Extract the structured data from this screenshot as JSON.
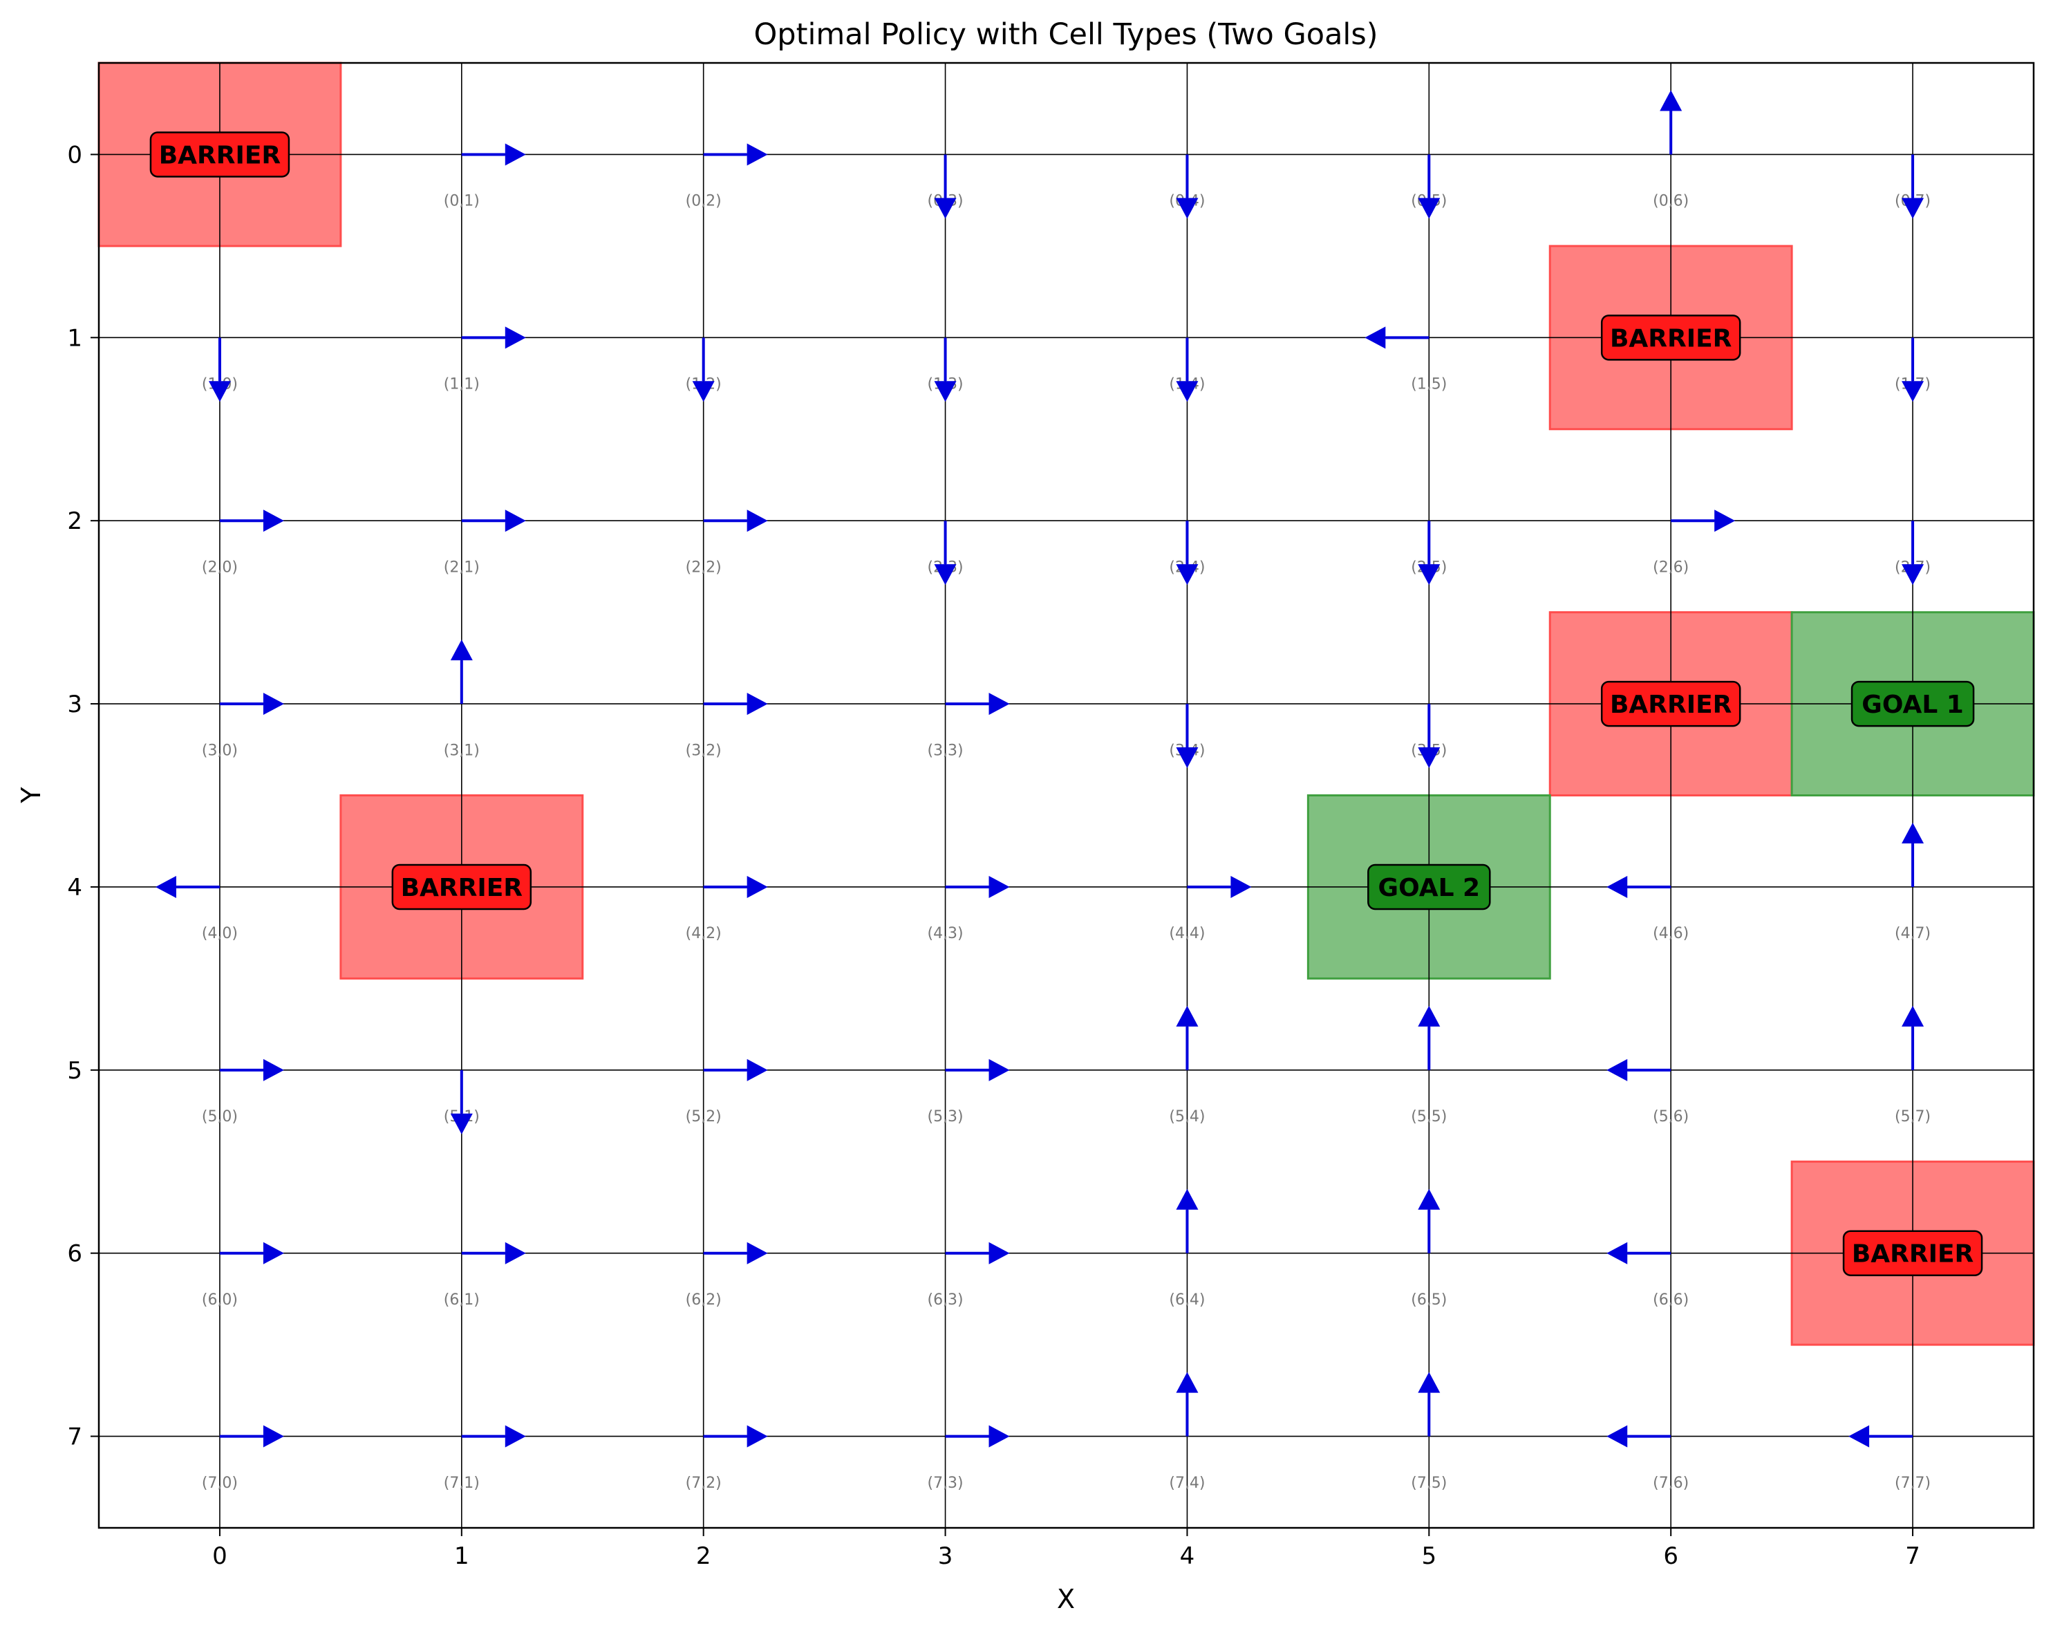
{
  "chart_data": {
    "type": "grid-policy",
    "title": "Optimal Policy with Cell Types (Two Goals)",
    "xlabel": "X",
    "ylabel": "Y",
    "xlim": [
      -0.5,
      7.5
    ],
    "ylim": [
      7.5,
      -0.5
    ],
    "x_ticks": [
      "0",
      "1",
      "2",
      "3",
      "4",
      "5",
      "6",
      "7"
    ],
    "y_ticks": [
      "0",
      "1",
      "2",
      "3",
      "4",
      "5",
      "6",
      "7"
    ],
    "grid": true,
    "colors": {
      "barrier_fill": "#ff8080",
      "barrier_edge": "#ff4d4d",
      "barrier_label_bg": "#ff1a1a",
      "goal_fill": "#80c080",
      "goal_edge": "#40a040",
      "goal_label_bg": "#1a8a1a",
      "arrow": "#0000dd",
      "coord_label": "#777777"
    },
    "cells": [
      {
        "row": 0,
        "col": 0,
        "type": "barrier",
        "label": "BARRIER"
      },
      {
        "row": 1,
        "col": 6,
        "type": "barrier",
        "label": "BARRIER"
      },
      {
        "row": 3,
        "col": 6,
        "type": "barrier",
        "label": "BARRIER"
      },
      {
        "row": 4,
        "col": 1,
        "type": "barrier",
        "label": "BARRIER"
      },
      {
        "row": 6,
        "col": 7,
        "type": "barrier",
        "label": "BARRIER"
      },
      {
        "row": 3,
        "col": 7,
        "type": "goal",
        "label": "GOAL 1"
      },
      {
        "row": 4,
        "col": 5,
        "type": "goal",
        "label": "GOAL 2"
      }
    ],
    "policy": [
      [
        "none",
        "right",
        "right",
        "down",
        "down",
        "down",
        "up",
        "down"
      ],
      [
        "down",
        "right",
        "down",
        "down",
        "down",
        "left",
        "none",
        "down"
      ],
      [
        "right",
        "right",
        "right",
        "down",
        "down",
        "down",
        "right",
        "down"
      ],
      [
        "right",
        "up",
        "right",
        "right",
        "down",
        "down",
        "none",
        "none"
      ],
      [
        "left",
        "none",
        "right",
        "right",
        "right",
        "none",
        "left",
        "up"
      ],
      [
        "right",
        "down",
        "right",
        "right",
        "up",
        "up",
        "left",
        "up"
      ],
      [
        "right",
        "right",
        "right",
        "right",
        "up",
        "up",
        "left",
        "none"
      ],
      [
        "right",
        "right",
        "right",
        "right",
        "up",
        "up",
        "left",
        "left"
      ]
    ],
    "coord_labels": [
      [
        "",
        "(0,1)",
        "(0,2)",
        "(0,3)",
        "(0,4)",
        "(0,5)",
        "(0,6)",
        "(0,7)"
      ],
      [
        "(1,0)",
        "(1,1)",
        "(1,2)",
        "(1,3)",
        "(1,4)",
        "(1,5)",
        "",
        "(1,7)"
      ],
      [
        "(2,0)",
        "(2,1)",
        "(2,2)",
        "(2,3)",
        "(2,4)",
        "(2,5)",
        "(2,6)",
        "(2,7)"
      ],
      [
        "(3,0)",
        "(3,1)",
        "(3,2)",
        "(3,3)",
        "(3,4)",
        "(3,5)",
        "",
        ""
      ],
      [
        "(4,0)",
        "",
        "(4,2)",
        "(4,3)",
        "(4,4)",
        "",
        "(4,6)",
        "(4,7)"
      ],
      [
        "(5,0)",
        "(5,1)",
        "(5,2)",
        "(5,3)",
        "(5,4)",
        "(5,5)",
        "(5,6)",
        "(5,7)"
      ],
      [
        "(6,0)",
        "(6,1)",
        "(6,2)",
        "(6,3)",
        "(6,4)",
        "(6,5)",
        "(6,6)",
        ""
      ],
      [
        "(7,0)",
        "(7,1)",
        "(7,2)",
        "(7,3)",
        "(7,4)",
        "(7,5)",
        "(7,6)",
        "(7,7)"
      ]
    ]
  }
}
